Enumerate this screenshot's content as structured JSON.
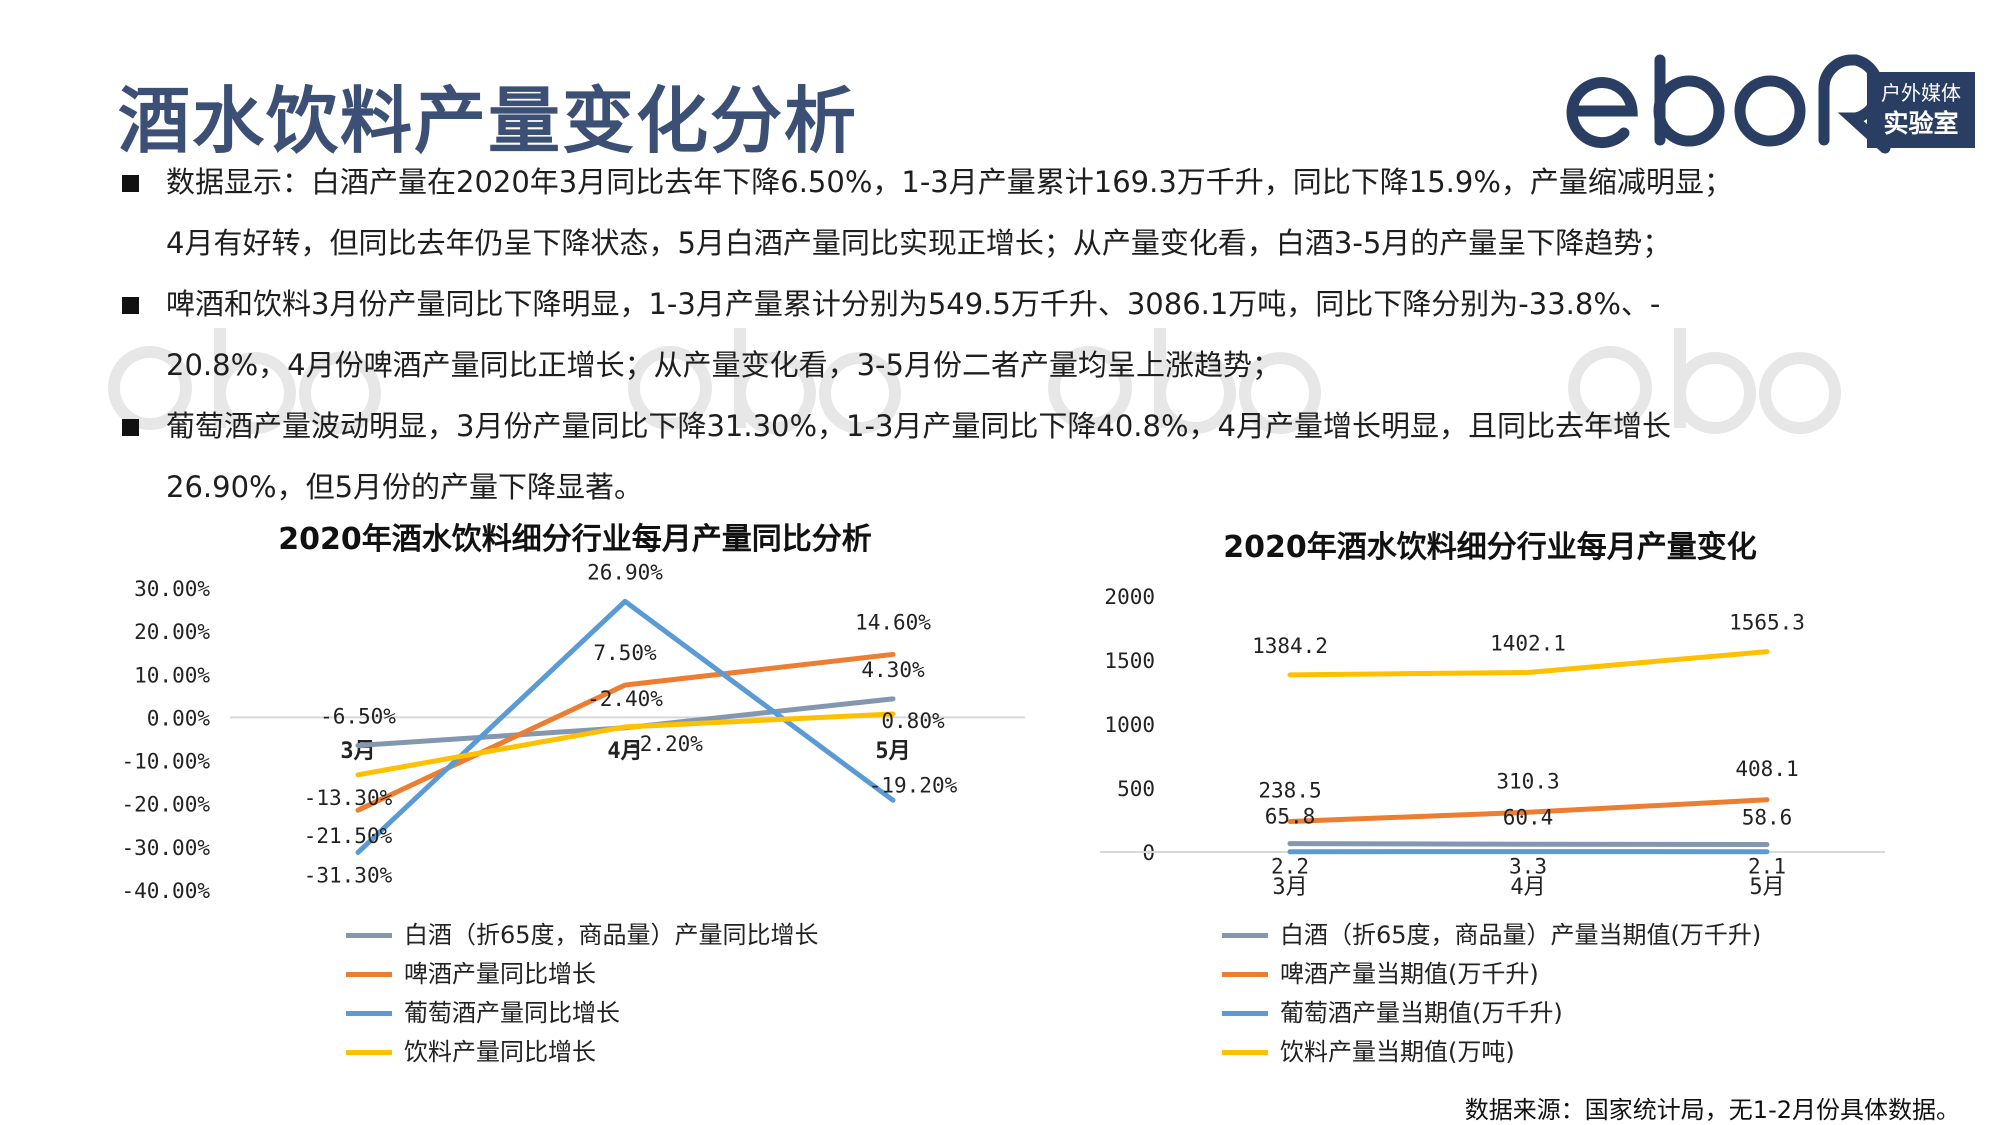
{
  "title": "酒水饮料产量变化分析",
  "brand": {
    "line1": "户外媒体",
    "line2": "实验室"
  },
  "bullets": [
    {
      "line1": "数据显示：白酒产量在2020年3月同比去年下降6.50%，1-3月产量累计169.3万千升，同比下降15.9%，产量缩减明显；",
      "line2": "4月有好转，但同比去年仍呈下降状态，5月白酒产量同比实现正增长；从产量变化看，白酒3-5月的产量呈下降趋势；"
    },
    {
      "line1": "啤酒和饮料3月份产量同比下降明显，1-3月产量累计分别为549.5万千升、3086.1万吨，同比下降分别为-33.8%、-",
      "line2": "20.8%，4月份啤酒产量同比正增长；从产量变化看，3-5月份二者产量均呈上涨趋势；"
    },
    {
      "line1": "葡萄酒产量波动明显，3月份产量同比下降31.30%，1-3月产量同比下降40.8%，4月产量增长明显，且同比去年增长",
      "line2": "26.90%，但5月份的产量下降显著。"
    }
  ],
  "source": "数据来源：国家统计局，无1-2月份具体数据。",
  "colors": {
    "gray": "#8497b0",
    "orange": "#ed7d31",
    "blue": "#5b9bd5",
    "yellow": "#ffc000",
    "title": "#3c4f75"
  },
  "chart_data": [
    {
      "type": "line",
      "title": "2020年酒水饮料细分行业每月产量同比分析",
      "categories": [
        "3月",
        "4月",
        "5月"
      ],
      "ylim": [
        -40,
        30
      ],
      "yticks": [
        30,
        20,
        10,
        0,
        -10,
        -20,
        -30,
        -40
      ],
      "ytick_labels": [
        "30.00%",
        "20.00%",
        "10.00%",
        "0.00%",
        "-10.00%",
        "-20.00%",
        "-30.00%",
        "-40.00%"
      ],
      "legend_position": "bottom",
      "series": [
        {
          "name": "白酒（折65度，商品量）产量同比增长",
          "color": "#8497b0",
          "values": [
            -6.5,
            -2.4,
            4.3
          ],
          "labels": [
            "-6.50%",
            "-2.40%",
            "4.30%"
          ]
        },
        {
          "name": "啤酒产量同比增长",
          "color": "#ed7d31",
          "values": [
            -21.5,
            7.5,
            14.6
          ],
          "labels": [
            "-21.50%",
            "7.50%",
            "14.60%"
          ]
        },
        {
          "name": "葡萄酒产量同比增长",
          "color": "#5b9bd5",
          "values": [
            -31.3,
            26.9,
            -19.2
          ],
          "labels": [
            "-31.30%",
            "26.90%",
            "-19.20%"
          ]
        },
        {
          "name": "饮料产量同比增长",
          "color": "#ffc000",
          "values": [
            -13.3,
            -2.2,
            0.8
          ],
          "labels": [
            "-13.30%",
            "-2.20%",
            "0.80%"
          ]
        }
      ]
    },
    {
      "type": "line",
      "title": "2020年酒水饮料细分行业每月产量变化",
      "categories": [
        "3月",
        "4月",
        "5月"
      ],
      "ylim": [
        0,
        2000
      ],
      "yticks": [
        2000,
        1500,
        1000,
        500,
        0
      ],
      "ytick_labels": [
        "2000",
        "1500",
        "1000",
        "500",
        "0"
      ],
      "legend_position": "bottom",
      "series": [
        {
          "name": "白酒（折65度，商品量）产量当期值(万千升)",
          "color": "#8497b0",
          "values": [
            65.8,
            60.4,
            58.6
          ],
          "labels": [
            "65.8",
            "60.4",
            "58.6"
          ]
        },
        {
          "name": "啤酒产量当期值(万千升)",
          "color": "#ed7d31",
          "values": [
            238.5,
            310.3,
            408.1
          ],
          "labels": [
            "238.5",
            "310.3",
            "408.1"
          ]
        },
        {
          "name": "葡萄酒产量当期值(万千升)",
          "color": "#5b9bd5",
          "values": [
            2.2,
            3.3,
            2.1
          ],
          "labels": [
            "2.2",
            "3.3",
            "2.1"
          ]
        },
        {
          "name": "饮料产量当期值(万吨)",
          "color": "#ffc000",
          "values": [
            1384.2,
            1402.1,
            1565.3
          ],
          "labels": [
            "1384.2",
            "1402.1",
            "1565.3"
          ]
        }
      ]
    }
  ]
}
